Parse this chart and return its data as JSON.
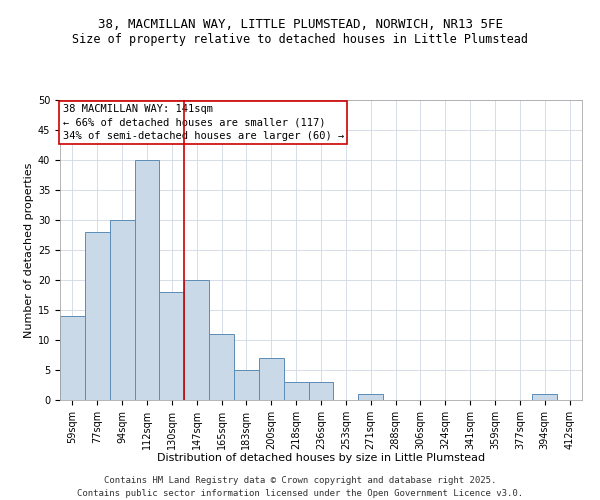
{
  "title1": "38, MACMILLAN WAY, LITTLE PLUMSTEAD, NORWICH, NR13 5FE",
  "title2": "Size of property relative to detached houses in Little Plumstead",
  "xlabel": "Distribution of detached houses by size in Little Plumstead",
  "ylabel": "Number of detached properties",
  "categories": [
    "59sqm",
    "77sqm",
    "94sqm",
    "112sqm",
    "130sqm",
    "147sqm",
    "165sqm",
    "183sqm",
    "200sqm",
    "218sqm",
    "236sqm",
    "253sqm",
    "271sqm",
    "288sqm",
    "306sqm",
    "324sqm",
    "341sqm",
    "359sqm",
    "377sqm",
    "394sqm",
    "412sqm"
  ],
  "values": [
    14,
    28,
    30,
    40,
    18,
    20,
    11,
    5,
    7,
    3,
    3,
    0,
    1,
    0,
    0,
    0,
    0,
    0,
    0,
    1,
    0
  ],
  "bar_color": "#c9d9e8",
  "bar_edge_color": "#5b8db8",
  "bar_edge_width": 0.7,
  "red_line_x": 4.5,
  "red_line_color": "#cc0000",
  "annotation_text": "38 MACMILLAN WAY: 141sqm\n← 66% of detached houses are smaller (117)\n34% of semi-detached houses are larger (60) →",
  "annotation_box_color": "#ffffff",
  "annotation_box_edge": "#cc0000",
  "ylim": [
    0,
    50
  ],
  "yticks": [
    0,
    5,
    10,
    15,
    20,
    25,
    30,
    35,
    40,
    45,
    50
  ],
  "footer": "Contains HM Land Registry data © Crown copyright and database right 2025.\nContains public sector information licensed under the Open Government Licence v3.0.",
  "bg_color": "#ffffff",
  "grid_color": "#d0d8e4",
  "title_fontsize": 9,
  "subtitle_fontsize": 8.5,
  "axis_label_fontsize": 8,
  "tick_fontsize": 7,
  "annotation_fontsize": 7.5,
  "footer_fontsize": 6.5
}
